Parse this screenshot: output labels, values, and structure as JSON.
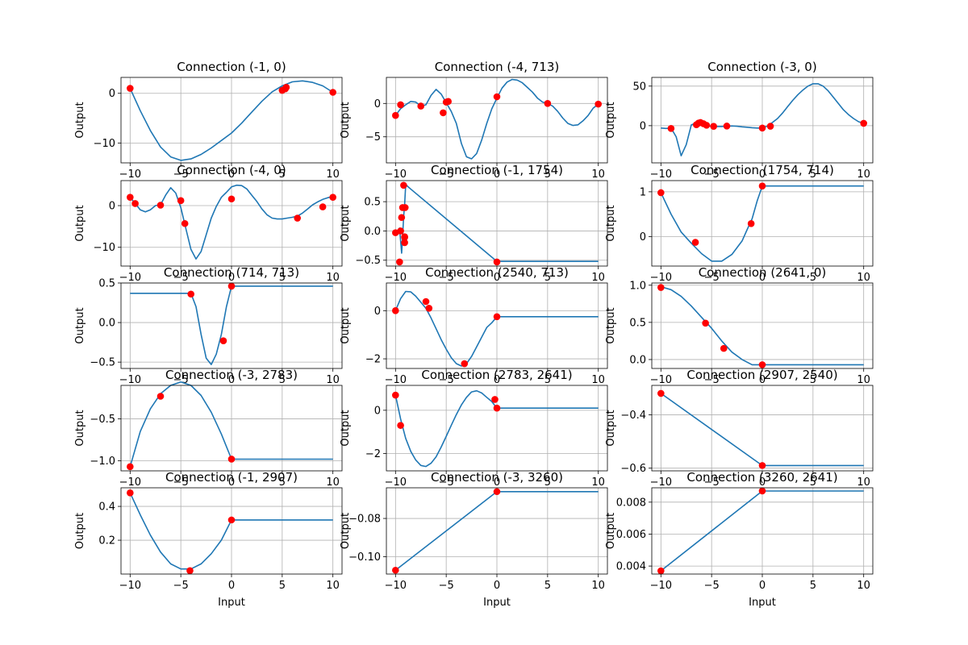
{
  "chart_data": [
    {
      "type": "line",
      "title": "Connection (-1, 0)",
      "xlabel": "",
      "ylabel": "Output",
      "xlim": [
        -10.9,
        10.9
      ],
      "ylim": [
        -14,
        3.2
      ],
      "xticks": [
        -10,
        -5,
        0,
        5,
        10
      ],
      "yticks": [
        -10,
        0
      ],
      "grid": true,
      "line": {
        "x": [
          -10,
          -9,
          -8,
          -7,
          -6,
          -5,
          -4,
          -3,
          -2,
          -1,
          0,
          1,
          2,
          3,
          4,
          5,
          6,
          7,
          8,
          9,
          10
        ],
        "y": [
          1,
          -3.5,
          -7.5,
          -10.8,
          -12.8,
          -13.5,
          -13.2,
          -12.3,
          -11,
          -9.5,
          -8,
          -6,
          -3.8,
          -1.6,
          0.3,
          1.5,
          2.3,
          2.5,
          2.2,
          1.5,
          0.2
        ]
      },
      "points": {
        "x": [
          -10,
          5,
          5.3,
          5.4,
          10
        ],
        "y": [
          1,
          0.6,
          0.9,
          1.2,
          0.2
        ]
      }
    },
    {
      "type": "line",
      "title": "Connection (-4, 713)",
      "xlabel": "",
      "ylabel": "Output",
      "xlim": [
        -10.9,
        10.9
      ],
      "ylim": [
        -8.9,
        3.9
      ],
      "xticks": [
        -10,
        -5,
        0,
        5,
        10
      ],
      "yticks": [
        -5,
        0
      ],
      "grid": true,
      "line": {
        "x": [
          -10,
          -9.5,
          -9,
          -8.5,
          -8,
          -7.5,
          -7,
          -6.5,
          -6,
          -5.5,
          -5,
          -4.5,
          -4,
          -3.5,
          -3,
          -2.5,
          -2,
          -1.5,
          -1,
          -0.5,
          0,
          0.5,
          1,
          1.5,
          2,
          2.5,
          3,
          3.5,
          4,
          4.5,
          5,
          5.5,
          6,
          6.5,
          7,
          7.5,
          8,
          8.5,
          9,
          9.5,
          10
        ],
        "y": [
          -1.8,
          -0.8,
          -0.2,
          0.3,
          0.2,
          -0.4,
          -0.2,
          1.2,
          2.1,
          1.4,
          0.1,
          -1.2,
          -3,
          -6,
          -8,
          -8.3,
          -7.5,
          -5.5,
          -3,
          -0.8,
          0.8,
          2.3,
          3.2,
          3.6,
          3.5,
          3.1,
          2.4,
          1.7,
          0.8,
          0.2,
          0,
          -0.4,
          -1.2,
          -2.2,
          -3,
          -3.3,
          -3.2,
          -2.6,
          -1.8,
          -0.7,
          -0.1
        ]
      },
      "points": {
        "x": [
          -10,
          -9.5,
          -7.5,
          -5.3,
          -5,
          -4.8,
          0,
          5,
          10
        ],
        "y": [
          -1.8,
          -0.2,
          -0.4,
          -1.4,
          0.2,
          0.3,
          1,
          0,
          -0.1
        ]
      }
    },
    {
      "type": "line",
      "title": "Connection (-3, 0)",
      "xlabel": "",
      "ylabel": "Output",
      "xlim": [
        -10.9,
        10.9
      ],
      "ylim": [
        -47,
        61
      ],
      "xticks": [
        -10,
        -5,
        0,
        5,
        10
      ],
      "yticks": [
        0,
        50
      ],
      "grid": true,
      "line": {
        "x": [
          -10,
          -9.5,
          -9,
          -8.5,
          -8,
          -7.5,
          -7,
          -6.5,
          -6,
          -5.5,
          -5,
          -4.5,
          -4,
          -3.5,
          -3,
          -2.5,
          -2,
          -1.5,
          -1,
          -0.5,
          0,
          0.5,
          1,
          1.5,
          2,
          2.5,
          3,
          3.5,
          4,
          4.5,
          5,
          5.5,
          6,
          6.5,
          7,
          7.5,
          8,
          8.5,
          9,
          9.5,
          10
        ],
        "y": [
          -3,
          -3.5,
          -3,
          -14,
          -38,
          -24,
          1,
          3.5,
          1,
          -0.5,
          -0.5,
          -1,
          -1,
          -0.6,
          -0.3,
          -0.7,
          -1.5,
          -2,
          -2.6,
          -3,
          -3,
          -0.5,
          4,
          9,
          16,
          24,
          32,
          39,
          45,
          50,
          53,
          53,
          50,
          44,
          36,
          28,
          20,
          14,
          9,
          5,
          3
        ]
      },
      "points": {
        "x": [
          -9,
          -6.5,
          -6.3,
          -6.1,
          -5.8,
          -5.5,
          -4.8,
          -3.5,
          0,
          0.8,
          10
        ],
        "y": [
          -3.5,
          1.2,
          3.2,
          4,
          2.5,
          0.5,
          -0.8,
          -0.5,
          -3,
          -0.7,
          3
        ]
      }
    },
    {
      "type": "line",
      "title": "Connection (-4, 0)",
      "xlabel": "",
      "ylabel": "Output",
      "xlim": [
        -10.9,
        10.9
      ],
      "ylim": [
        -14.5,
        6
      ],
      "xticks": [
        -10,
        -5,
        0,
        5,
        10
      ],
      "yticks": [
        -10,
        0
      ],
      "grid": true,
      "line": {
        "x": [
          -10,
          -9.5,
          -9,
          -8.5,
          -8,
          -7.5,
          -7,
          -6.5,
          -6,
          -5.5,
          -5,
          -4.5,
          -4,
          -3.5,
          -3,
          -2.5,
          -2,
          -1.5,
          -1,
          -0.5,
          0,
          0.5,
          1,
          1.5,
          2,
          2.5,
          3,
          3.5,
          4,
          4.5,
          5,
          5.5,
          6,
          6.5,
          7,
          7.5,
          8,
          8.5,
          9,
          9.5,
          10
        ],
        "y": [
          2,
          0.5,
          -1,
          -1.5,
          -1,
          0,
          0.2,
          2.5,
          4.3,
          3,
          -0.5,
          -5.5,
          -10.5,
          -12.8,
          -11,
          -7,
          -3,
          -0.2,
          2,
          3.2,
          4.5,
          4.9,
          4.8,
          4,
          2.5,
          1,
          -0.8,
          -2.2,
          -3,
          -3.2,
          -3.2,
          -3,
          -2.8,
          -2.5,
          -1.8,
          -0.8,
          0.2,
          0.9,
          1.5,
          1.9,
          2.2
        ]
      },
      "points": {
        "x": [
          -10,
          -9.5,
          -7,
          -5,
          -4.6,
          0,
          6.5,
          9,
          10
        ],
        "y": [
          2,
          0.5,
          0.1,
          1.2,
          -4.3,
          1.6,
          -3,
          -0.3,
          2
        ]
      }
    },
    {
      "type": "line",
      "title": "Connection (-1, 1754)",
      "xlabel": "",
      "ylabel": "Output",
      "xlim": [
        -10.9,
        10.9
      ],
      "ylim": [
        -0.6,
        0.86
      ],
      "xticks": [
        -10,
        -5,
        0,
        5,
        10
      ],
      "yticks": [
        -0.5,
        0.0,
        0.5
      ],
      "grid": true,
      "line": {
        "x": [
          -10,
          -9.8,
          -9.6,
          -9.4,
          -9.3,
          -9.2,
          -9.1,
          -9,
          -8.9,
          -8.8,
          0,
          10
        ],
        "y": [
          -0.03,
          -0.03,
          0.05,
          -0.38,
          -0.1,
          0.25,
          0.45,
          0.78,
          0.78,
          0.76,
          -0.52,
          -0.52
        ]
      },
      "points": {
        "x": [
          -10,
          -9.6,
          -9.5,
          -9.4,
          -9.3,
          -9.2,
          -9.1,
          -9.1,
          -9.1,
          -9.05,
          0
        ],
        "y": [
          -0.03,
          -0.53,
          0,
          0.23,
          0.4,
          0.78,
          -0.1,
          -0.2,
          -0.11,
          0.4,
          -0.53
        ]
      }
    },
    {
      "type": "line",
      "title": "Connection (1754, 714)",
      "xlabel": "",
      "ylabel": "Output",
      "xlim": [
        -10.9,
        10.9
      ],
      "ylim": [
        -0.66,
        1.25
      ],
      "xticks": [
        -10,
        -5,
        0,
        5,
        10
      ],
      "yticks": [
        0,
        1
      ],
      "grid": true,
      "line": {
        "x": [
          -10,
          -9,
          -8,
          -7,
          -6,
          -5,
          -4,
          -3,
          -2,
          -1.5,
          -1,
          -0.5,
          0,
          10
        ],
        "y": [
          0.98,
          0.5,
          0.1,
          -0.15,
          -0.38,
          -0.55,
          -0.55,
          -0.4,
          -0.1,
          0.15,
          0.4,
          0.8,
          1.13,
          1.13
        ]
      },
      "points": {
        "x": [
          -10,
          -6.6,
          -1.1,
          0
        ],
        "y": [
          0.98,
          -0.13,
          0.29,
          1.13
        ]
      }
    },
    {
      "type": "line",
      "title": "Connection (714, 713)",
      "xlabel": "",
      "ylabel": "Output",
      "xlim": [
        -10.9,
        10.9
      ],
      "ylim": [
        -0.58,
        0.5
      ],
      "xticks": [
        -10,
        -5,
        0,
        5,
        10
      ],
      "yticks": [
        -0.5,
        0.0,
        0.5
      ],
      "grid": true,
      "line": {
        "x": [
          -10,
          -4,
          -3.5,
          -3,
          -2.5,
          -2,
          -1.5,
          -1,
          -0.5,
          0,
          10
        ],
        "y": [
          0.37,
          0.37,
          0.2,
          -0.15,
          -0.45,
          -0.53,
          -0.4,
          -0.15,
          0.2,
          0.46,
          0.46
        ]
      },
      "points": {
        "x": [
          -4,
          -0.8,
          0
        ],
        "y": [
          0.36,
          -0.23,
          0.46
        ]
      }
    },
    {
      "type": "line",
      "title": "Connection (2540, 713)",
      "xlabel": "",
      "ylabel": "Output",
      "xlim": [
        -10.9,
        10.9
      ],
      "ylim": [
        -2.4,
        1.15
      ],
      "xticks": [
        -10,
        -5,
        0,
        5,
        10
      ],
      "yticks": [
        -2,
        0
      ],
      "grid": true,
      "line": {
        "x": [
          -10,
          -9.5,
          -9,
          -8.5,
          -8,
          -7.5,
          -7,
          -6.5,
          -6,
          -5.5,
          -5,
          -4.5,
          -4,
          -3.5,
          -3,
          -2.5,
          -2,
          -1.5,
          -1,
          -0.5,
          0,
          10
        ],
        "y": [
          0,
          0.5,
          0.8,
          0.78,
          0.6,
          0.35,
          0.1,
          -0.3,
          -0.75,
          -1.2,
          -1.6,
          -1.95,
          -2.2,
          -2.3,
          -2.2,
          -1.9,
          -1.5,
          -1.1,
          -0.7,
          -0.5,
          -0.25,
          -0.25
        ]
      },
      "points": {
        "x": [
          -10,
          -7,
          -6.7,
          -3.2,
          0
        ],
        "y": [
          0,
          0.38,
          0.1,
          -2.2,
          -0.25
        ]
      }
    },
    {
      "type": "line",
      "title": "Connection (2641, 0)",
      "xlabel": "",
      "ylabel": "Output",
      "xlim": [
        -10.9,
        10.9
      ],
      "ylim": [
        -0.12,
        1.03
      ],
      "xticks": [
        -10,
        -5,
        0,
        5,
        10
      ],
      "yticks": [
        0.0,
        0.5,
        1.0
      ],
      "grid": true,
      "line": {
        "x": [
          -10,
          -9,
          -8,
          -7,
          -6,
          -5,
          -4,
          -3,
          -2,
          -1,
          0,
          10
        ],
        "y": [
          0.98,
          0.94,
          0.85,
          0.72,
          0.57,
          0.42,
          0.25,
          0.1,
          0,
          -0.07,
          -0.07,
          -0.07
        ]
      },
      "points": {
        "x": [
          -10,
          -5.6,
          -3.8,
          0
        ],
        "y": [
          0.97,
          0.49,
          0.15,
          -0.07
        ]
      }
    },
    {
      "type": "line",
      "title": "Connection (-3, 2783)",
      "xlabel": "",
      "ylabel": "Output",
      "xlim": [
        -10.9,
        10.9
      ],
      "ylim": [
        -1.12,
        -0.1
      ],
      "xticks": [
        -10,
        -5,
        0,
        5,
        10
      ],
      "yticks": [
        -1.0,
        -0.5
      ],
      "grid": true,
      "line": {
        "x": [
          -10,
          -9,
          -8,
          -7,
          -6,
          -5,
          -4,
          -3,
          -2,
          -1,
          0,
          10
        ],
        "y": [
          -1.07,
          -0.65,
          -0.38,
          -0.2,
          -0.1,
          -0.06,
          -0.1,
          -0.22,
          -0.42,
          -0.68,
          -0.98,
          -0.98
        ]
      },
      "points": {
        "x": [
          -10,
          -7,
          0
        ],
        "y": [
          -1.07,
          -0.23,
          -0.98
        ]
      }
    },
    {
      "type": "line",
      "title": "Connection (2783, 2641)",
      "xlabel": "",
      "ylabel": "Output",
      "xlim": [
        -10.9,
        10.9
      ],
      "ylim": [
        -2.8,
        1.15
      ],
      "xticks": [
        -10,
        -5,
        0,
        5,
        10
      ],
      "yticks": [
        -2,
        0
      ],
      "grid": true,
      "line": {
        "x": [
          -10,
          -9.5,
          -9,
          -8.5,
          -8,
          -7.5,
          -7,
          -6.5,
          -6,
          -5.5,
          -5,
          -4.5,
          -4,
          -3.5,
          -3,
          -2.5,
          -2,
          -1.5,
          -1,
          -0.5,
          0,
          10
        ],
        "y": [
          0.7,
          -0.4,
          -1.3,
          -1.9,
          -2.3,
          -2.55,
          -2.6,
          -2.45,
          -2.15,
          -1.7,
          -1.2,
          -0.7,
          -0.2,
          0.25,
          0.6,
          0.85,
          0.9,
          0.8,
          0.6,
          0.4,
          0.1,
          0.1
        ]
      },
      "points": {
        "x": [
          -10,
          -9.5,
          0,
          -0.2
        ],
        "y": [
          0.7,
          -0.7,
          0.1,
          0.5
        ]
      }
    },
    {
      "type": "line",
      "title": "Connection (2907, 2540)",
      "xlabel": "",
      "ylabel": "Output",
      "xlim": [
        -10.9,
        10.9
      ],
      "ylim": [
        -0.61,
        -0.29
      ],
      "xticks": [
        -10,
        -5,
        0,
        5,
        10
      ],
      "yticks": [
        -0.6,
        -0.4
      ],
      "grid": true,
      "line": {
        "x": [
          -10,
          0,
          10
        ],
        "y": [
          -0.32,
          -0.59,
          -0.59
        ]
      },
      "points": {
        "x": [
          -10,
          0
        ],
        "y": [
          -0.32,
          -0.59
        ]
      }
    },
    {
      "type": "line",
      "title": "Connection (-1, 2907)",
      "xlabel": "Input",
      "ylabel": "Output",
      "xlim": [
        -10.9,
        10.9
      ],
      "ylim": [
        0.0,
        0.51
      ],
      "xticks": [
        -10,
        -5,
        0,
        5,
        10
      ],
      "yticks": [
        0.2,
        0.4
      ],
      "grid": true,
      "line": {
        "x": [
          -10,
          -9,
          -8,
          -7,
          -6,
          -5,
          -4,
          -3,
          -2,
          -1,
          0,
          10
        ],
        "y": [
          0.48,
          0.35,
          0.23,
          0.13,
          0.06,
          0.03,
          0.03,
          0.06,
          0.12,
          0.2,
          0.32,
          0.32
        ]
      },
      "points": {
        "x": [
          -10,
          -4.1,
          0
        ],
        "y": [
          0.48,
          0.02,
          0.32
        ]
      }
    },
    {
      "type": "line",
      "title": "Connection (-3, 3260)",
      "xlabel": "Input",
      "ylabel": "Output",
      "xlim": [
        -10.9,
        10.9
      ],
      "ylim": [
        -0.109,
        -0.064
      ],
      "xticks": [
        -10,
        -5,
        0,
        5,
        10
      ],
      "yticks": [
        -0.1,
        -0.08
      ],
      "grid": true,
      "line": {
        "x": [
          -10,
          0,
          10
        ],
        "y": [
          -0.107,
          -0.066,
          -0.066
        ]
      },
      "points": {
        "x": [
          -10,
          0
        ],
        "y": [
          -0.107,
          -0.066
        ]
      }
    },
    {
      "type": "line",
      "title": "Connection (3260, 2641)",
      "xlabel": "Input",
      "ylabel": "Output",
      "xlim": [
        -10.9,
        10.9
      ],
      "ylim": [
        0.0035,
        0.0089
      ],
      "xticks": [
        -10,
        -5,
        0,
        5,
        10
      ],
      "yticks": [
        0.004,
        0.006,
        0.008
      ],
      "grid": true,
      "line": {
        "x": [
          -10,
          0,
          10
        ],
        "y": [
          0.0037,
          0.0087,
          0.0087
        ]
      },
      "points": {
        "x": [
          -10,
          0
        ],
        "y": [
          0.0037,
          0.0087
        ]
      }
    }
  ],
  "colors": {
    "line": "#1f77b4",
    "points": "#ff0000",
    "grid": "#b0b0b0"
  }
}
